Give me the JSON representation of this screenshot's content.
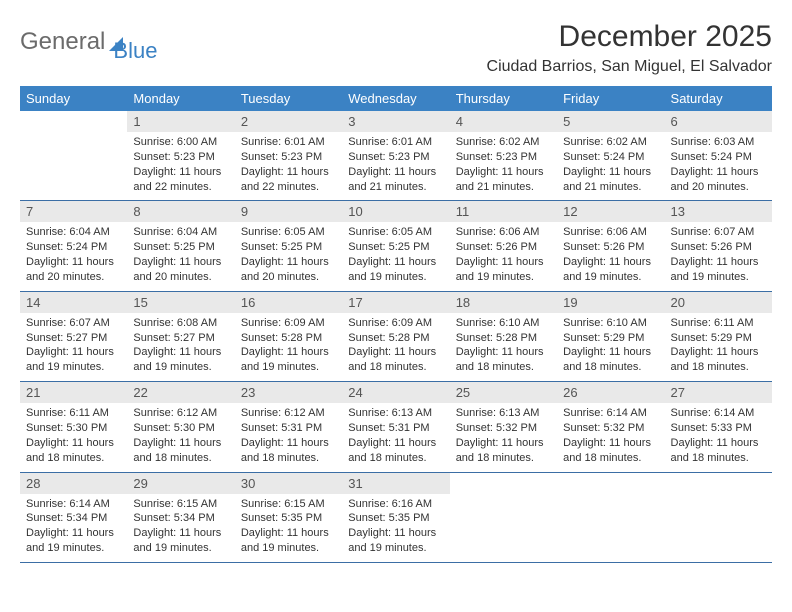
{
  "brand": {
    "part1": "General",
    "part2": "Blue"
  },
  "title": "December 2025",
  "location": "Ciudad Barrios, San Miguel, El Salvador",
  "colors": {
    "header_bg": "#3b82c4",
    "daynum_bg": "#e9e9e9",
    "rule": "#3b6ea5"
  },
  "weekdays": [
    "Sunday",
    "Monday",
    "Tuesday",
    "Wednesday",
    "Thursday",
    "Friday",
    "Saturday"
  ],
  "weeks": [
    [
      null,
      {
        "n": "1",
        "sr": "Sunrise: 6:00 AM",
        "ss": "Sunset: 5:23 PM",
        "dl": "Daylight: 11 hours and 22 minutes."
      },
      {
        "n": "2",
        "sr": "Sunrise: 6:01 AM",
        "ss": "Sunset: 5:23 PM",
        "dl": "Daylight: 11 hours and 22 minutes."
      },
      {
        "n": "3",
        "sr": "Sunrise: 6:01 AM",
        "ss": "Sunset: 5:23 PM",
        "dl": "Daylight: 11 hours and 21 minutes."
      },
      {
        "n": "4",
        "sr": "Sunrise: 6:02 AM",
        "ss": "Sunset: 5:23 PM",
        "dl": "Daylight: 11 hours and 21 minutes."
      },
      {
        "n": "5",
        "sr": "Sunrise: 6:02 AM",
        "ss": "Sunset: 5:24 PM",
        "dl": "Daylight: 11 hours and 21 minutes."
      },
      {
        "n": "6",
        "sr": "Sunrise: 6:03 AM",
        "ss": "Sunset: 5:24 PM",
        "dl": "Daylight: 11 hours and 20 minutes."
      }
    ],
    [
      {
        "n": "7",
        "sr": "Sunrise: 6:04 AM",
        "ss": "Sunset: 5:24 PM",
        "dl": "Daylight: 11 hours and 20 minutes."
      },
      {
        "n": "8",
        "sr": "Sunrise: 6:04 AM",
        "ss": "Sunset: 5:25 PM",
        "dl": "Daylight: 11 hours and 20 minutes."
      },
      {
        "n": "9",
        "sr": "Sunrise: 6:05 AM",
        "ss": "Sunset: 5:25 PM",
        "dl": "Daylight: 11 hours and 20 minutes."
      },
      {
        "n": "10",
        "sr": "Sunrise: 6:05 AM",
        "ss": "Sunset: 5:25 PM",
        "dl": "Daylight: 11 hours and 19 minutes."
      },
      {
        "n": "11",
        "sr": "Sunrise: 6:06 AM",
        "ss": "Sunset: 5:26 PM",
        "dl": "Daylight: 11 hours and 19 minutes."
      },
      {
        "n": "12",
        "sr": "Sunrise: 6:06 AM",
        "ss": "Sunset: 5:26 PM",
        "dl": "Daylight: 11 hours and 19 minutes."
      },
      {
        "n": "13",
        "sr": "Sunrise: 6:07 AM",
        "ss": "Sunset: 5:26 PM",
        "dl": "Daylight: 11 hours and 19 minutes."
      }
    ],
    [
      {
        "n": "14",
        "sr": "Sunrise: 6:07 AM",
        "ss": "Sunset: 5:27 PM",
        "dl": "Daylight: 11 hours and 19 minutes."
      },
      {
        "n": "15",
        "sr": "Sunrise: 6:08 AM",
        "ss": "Sunset: 5:27 PM",
        "dl": "Daylight: 11 hours and 19 minutes."
      },
      {
        "n": "16",
        "sr": "Sunrise: 6:09 AM",
        "ss": "Sunset: 5:28 PM",
        "dl": "Daylight: 11 hours and 19 minutes."
      },
      {
        "n": "17",
        "sr": "Sunrise: 6:09 AM",
        "ss": "Sunset: 5:28 PM",
        "dl": "Daylight: 11 hours and 18 minutes."
      },
      {
        "n": "18",
        "sr": "Sunrise: 6:10 AM",
        "ss": "Sunset: 5:28 PM",
        "dl": "Daylight: 11 hours and 18 minutes."
      },
      {
        "n": "19",
        "sr": "Sunrise: 6:10 AM",
        "ss": "Sunset: 5:29 PM",
        "dl": "Daylight: 11 hours and 18 minutes."
      },
      {
        "n": "20",
        "sr": "Sunrise: 6:11 AM",
        "ss": "Sunset: 5:29 PM",
        "dl": "Daylight: 11 hours and 18 minutes."
      }
    ],
    [
      {
        "n": "21",
        "sr": "Sunrise: 6:11 AM",
        "ss": "Sunset: 5:30 PM",
        "dl": "Daylight: 11 hours and 18 minutes."
      },
      {
        "n": "22",
        "sr": "Sunrise: 6:12 AM",
        "ss": "Sunset: 5:30 PM",
        "dl": "Daylight: 11 hours and 18 minutes."
      },
      {
        "n": "23",
        "sr": "Sunrise: 6:12 AM",
        "ss": "Sunset: 5:31 PM",
        "dl": "Daylight: 11 hours and 18 minutes."
      },
      {
        "n": "24",
        "sr": "Sunrise: 6:13 AM",
        "ss": "Sunset: 5:31 PM",
        "dl": "Daylight: 11 hours and 18 minutes."
      },
      {
        "n": "25",
        "sr": "Sunrise: 6:13 AM",
        "ss": "Sunset: 5:32 PM",
        "dl": "Daylight: 11 hours and 18 minutes."
      },
      {
        "n": "26",
        "sr": "Sunrise: 6:14 AM",
        "ss": "Sunset: 5:32 PM",
        "dl": "Daylight: 11 hours and 18 minutes."
      },
      {
        "n": "27",
        "sr": "Sunrise: 6:14 AM",
        "ss": "Sunset: 5:33 PM",
        "dl": "Daylight: 11 hours and 18 minutes."
      }
    ],
    [
      {
        "n": "28",
        "sr": "Sunrise: 6:14 AM",
        "ss": "Sunset: 5:34 PM",
        "dl": "Daylight: 11 hours and 19 minutes."
      },
      {
        "n": "29",
        "sr": "Sunrise: 6:15 AM",
        "ss": "Sunset: 5:34 PM",
        "dl": "Daylight: 11 hours and 19 minutes."
      },
      {
        "n": "30",
        "sr": "Sunrise: 6:15 AM",
        "ss": "Sunset: 5:35 PM",
        "dl": "Daylight: 11 hours and 19 minutes."
      },
      {
        "n": "31",
        "sr": "Sunrise: 6:16 AM",
        "ss": "Sunset: 5:35 PM",
        "dl": "Daylight: 11 hours and 19 minutes."
      },
      null,
      null,
      null
    ]
  ]
}
